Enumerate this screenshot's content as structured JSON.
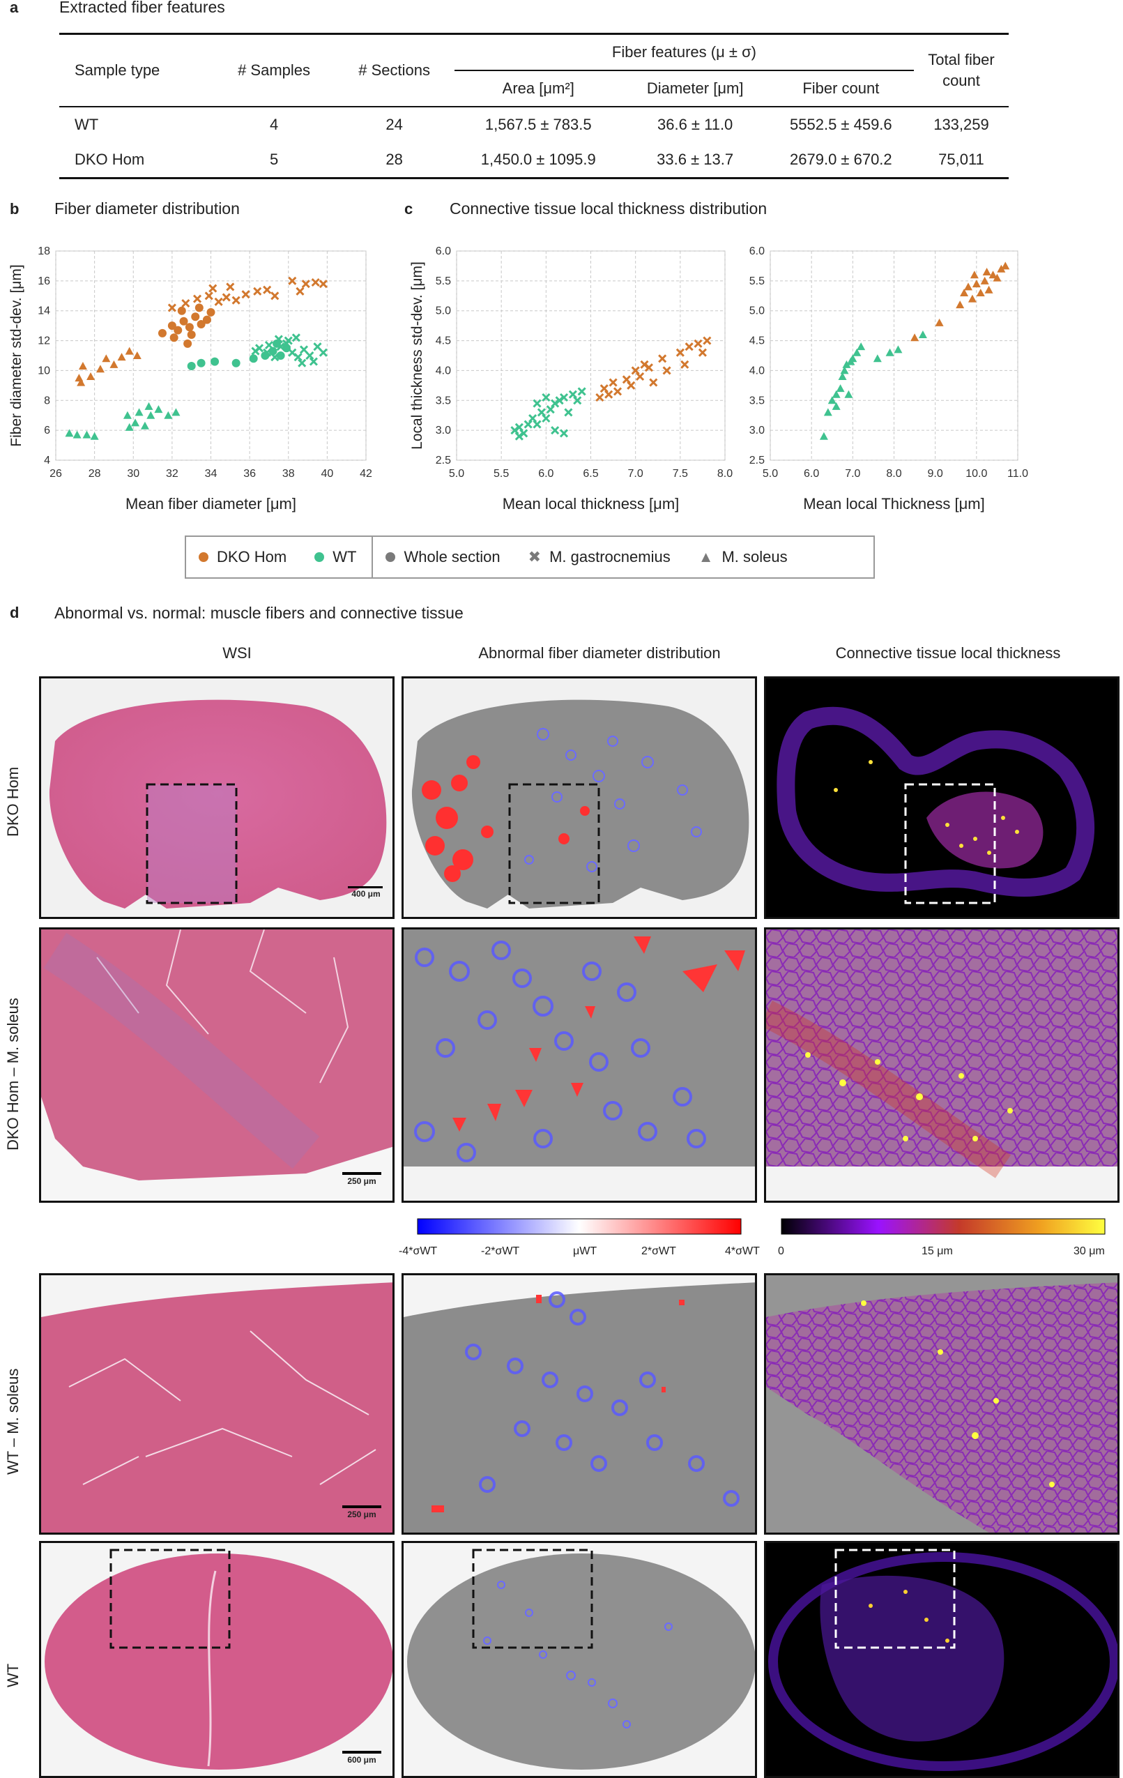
{
  "panel_a": {
    "letter": "a",
    "title": "Extracted fiber features",
    "headers": {
      "sample_type": "Sample type",
      "samples": "# Samples",
      "sections": "# Sections",
      "fiber_features": "Fiber features (μ ± σ)",
      "area": "Area [μm²]",
      "diameter": "Diameter [μm]",
      "fiber_count": "Fiber count",
      "total_fiber_count": "Total fiber count"
    },
    "rows": [
      {
        "sample": "WT",
        "samples": "4",
        "sections": "24",
        "area": "1,567.5 ± 783.5",
        "diameter": "36.6 ± 11.0",
        "fiber_count": "5552.5 ± 459.6",
        "total": "133,259"
      },
      {
        "sample": "DKO Hom",
        "samples": "5",
        "sections": "28",
        "area": "1,450.0 ± 1095.9",
        "diameter": "33.6 ± 13.7",
        "fiber_count": "2679.0 ± 670.2",
        "total": "75,011"
      }
    ]
  },
  "panel_b": {
    "letter": "b",
    "title": "Fiber diameter distribution"
  },
  "panel_c": {
    "letter": "c",
    "title": "Connective tissue local thickness distribution"
  },
  "colors": {
    "dko": "#d2782e",
    "wt": "#3fc28f",
    "grey": "#7a7a7a"
  },
  "chart_data": [
    {
      "type": "scatter",
      "xlabel": "Mean fiber diameter [μm]",
      "ylabel": "Fiber diameter std-dev. [μm]",
      "xlim": [
        26,
        42
      ],
      "ylim": [
        4,
        18
      ],
      "xticks": [
        26,
        28,
        30,
        32,
        34,
        36,
        38,
        40,
        42
      ],
      "yticks": [
        4,
        6,
        8,
        10,
        12,
        14,
        16,
        18
      ],
      "series": [
        {
          "name": "DKO Hom M. soleus",
          "marker": "triangle",
          "color": "dko",
          "points": [
            [
              27.2,
              9.5
            ],
            [
              27.4,
              10.3
            ],
            [
              27.8,
              9.6
            ],
            [
              28.3,
              10.1
            ],
            [
              28.6,
              10.8
            ],
            [
              29.0,
              10.4
            ],
            [
              29.4,
              10.9
            ],
            [
              29.8,
              11.3
            ],
            [
              30.2,
              11.0
            ],
            [
              27.3,
              9.2
            ]
          ]
        },
        {
          "name": "DKO Hom whole section",
          "marker": "circle",
          "color": "dko",
          "points": [
            [
              31.5,
              12.5
            ],
            [
              32.0,
              13.0
            ],
            [
              32.3,
              12.7
            ],
            [
              32.6,
              13.3
            ],
            [
              32.9,
              12.9
            ],
            [
              33.2,
              13.6
            ],
            [
              33.5,
              13.1
            ],
            [
              32.1,
              12.2
            ],
            [
              33.8,
              13.4
            ],
            [
              32.8,
              11.8
            ],
            [
              33.0,
              12.4
            ],
            [
              32.5,
              14.0
            ],
            [
              33.4,
              14.2
            ],
            [
              34.0,
              13.9
            ]
          ]
        },
        {
          "name": "DKO Hom M. gastrocnemius",
          "marker": "cross",
          "color": "dko",
          "points": [
            [
              32.0,
              14.2
            ],
            [
              32.7,
              14.5
            ],
            [
              33.3,
              14.8
            ],
            [
              33.9,
              15.0
            ],
            [
              34.4,
              14.6
            ],
            [
              34.8,
              14.9
            ],
            [
              35.3,
              14.7
            ],
            [
              35.8,
              15.1
            ],
            [
              36.4,
              15.3
            ],
            [
              36.9,
              15.4
            ],
            [
              37.3,
              15.0
            ],
            [
              38.6,
              15.3
            ],
            [
              38.9,
              15.8
            ],
            [
              39.4,
              15.9
            ],
            [
              39.8,
              15.8
            ],
            [
              38.2,
              16.0
            ],
            [
              34.1,
              15.5
            ],
            [
              35.0,
              15.6
            ]
          ]
        },
        {
          "name": "WT M. soleus",
          "marker": "triangle",
          "color": "wt",
          "points": [
            [
              26.7,
              5.8
            ],
            [
              27.1,
              5.7
            ],
            [
              27.6,
              5.7
            ],
            [
              28.0,
              5.6
            ],
            [
              29.8,
              6.2
            ],
            [
              30.1,
              6.5
            ],
            [
              30.6,
              6.3
            ],
            [
              29.7,
              7.0
            ],
            [
              30.3,
              7.2
            ],
            [
              30.9,
              7.0
            ],
            [
              31.3,
              7.4
            ],
            [
              31.8,
              7.0
            ],
            [
              32.2,
              7.2
            ],
            [
              30.8,
              7.6
            ]
          ]
        },
        {
          "name": "WT whole section",
          "marker": "circle",
          "color": "wt",
          "points": [
            [
              33.0,
              10.3
            ],
            [
              33.5,
              10.5
            ],
            [
              34.2,
              10.6
            ],
            [
              35.3,
              10.5
            ],
            [
              36.2,
              10.8
            ],
            [
              36.8,
              11.0
            ],
            [
              37.2,
              11.3
            ],
            [
              37.6,
              11.0
            ],
            [
              37.9,
              11.5
            ],
            [
              37.4,
              11.8
            ]
          ]
        },
        {
          "name": "WT M. gastrocnemius",
          "marker": "cross",
          "color": "wt",
          "points": [
            [
              36.5,
              11.5
            ],
            [
              36.9,
              11.2
            ],
            [
              37.3,
              10.9
            ],
            [
              37.6,
              11.6
            ],
            [
              37.9,
              11.8
            ],
            [
              38.2,
              11.2
            ],
            [
              38.5,
              10.9
            ],
            [
              38.8,
              11.4
            ],
            [
              39.1,
              11.0
            ],
            [
              39.5,
              11.6
            ],
            [
              39.8,
              11.2
            ],
            [
              38.0,
              12.0
            ],
            [
              38.4,
              12.2
            ],
            [
              37.5,
              12.1
            ],
            [
              39.3,
              10.6
            ],
            [
              38.7,
              10.5
            ],
            [
              37.0,
              11.7
            ],
            [
              36.3,
              11.3
            ]
          ]
        }
      ]
    },
    {
      "type": "scatter",
      "xlabel": "Mean local thickness [μm]",
      "ylabel": "Local thickness std-dev. [μm]",
      "xlim": [
        5.0,
        8.0
      ],
      "ylim": [
        2.5,
        6.0
      ],
      "xticks": [
        5.0,
        5.5,
        6.0,
        6.5,
        7.0,
        7.5,
        8.0
      ],
      "yticks": [
        2.5,
        3.0,
        3.5,
        4.0,
        4.5,
        5.0,
        5.5,
        6.0
      ],
      "series": [
        {
          "name": "WT M. gastrocnemius",
          "marker": "cross",
          "color": "wt",
          "points": [
            [
              5.65,
              3.0
            ],
            [
              5.7,
              3.05
            ],
            [
              5.75,
              2.95
            ],
            [
              5.8,
              3.1
            ],
            [
              5.85,
              3.2
            ],
            [
              5.9,
              3.1
            ],
            [
              5.95,
              3.3
            ],
            [
              6.0,
              3.2
            ],
            [
              6.05,
              3.35
            ],
            [
              6.1,
              3.45
            ],
            [
              6.15,
              3.5
            ],
            [
              6.2,
              3.55
            ],
            [
              6.25,
              3.3
            ],
            [
              6.3,
              3.6
            ],
            [
              6.35,
              3.5
            ],
            [
              5.7,
              2.9
            ],
            [
              5.9,
              3.45
            ],
            [
              6.1,
              3.0
            ],
            [
              6.2,
              2.95
            ],
            [
              6.4,
              3.65
            ],
            [
              6.0,
              3.55
            ]
          ]
        },
        {
          "name": "DKO Hom M. gastrocnemius",
          "marker": "cross",
          "color": "dko",
          "points": [
            [
              6.6,
              3.55
            ],
            [
              6.65,
              3.7
            ],
            [
              6.75,
              3.8
            ],
            [
              6.8,
              3.65
            ],
            [
              6.9,
              3.85
            ],
            [
              6.95,
              3.75
            ],
            [
              7.0,
              4.0
            ],
            [
              7.05,
              3.9
            ],
            [
              7.1,
              4.1
            ],
            [
              7.2,
              3.8
            ],
            [
              7.3,
              4.2
            ],
            [
              7.35,
              4.0
            ],
            [
              7.5,
              4.3
            ],
            [
              7.55,
              4.1
            ],
            [
              7.6,
              4.4
            ],
            [
              7.7,
              4.45
            ],
            [
              7.8,
              4.5
            ],
            [
              7.75,
              4.3
            ],
            [
              6.7,
              3.6
            ],
            [
              7.15,
              4.05
            ]
          ]
        }
      ]
    },
    {
      "type": "scatter",
      "xlabel": "Mean local Thickness [μm]",
      "ylabel": "",
      "xlim": [
        5,
        11
      ],
      "ylim": [
        2.5,
        6.0
      ],
      "xticks": [
        5,
        6,
        7,
        8,
        9,
        10,
        11
      ],
      "yticks": [
        2.5,
        3.0,
        3.5,
        4.0,
        4.5,
        5.0,
        5.5,
        6.0
      ],
      "series": [
        {
          "name": "WT M. soleus",
          "marker": "triangle",
          "color": "wt",
          "points": [
            [
              6.3,
              2.9
            ],
            [
              6.4,
              3.3
            ],
            [
              6.5,
              3.5
            ],
            [
              6.6,
              3.6
            ],
            [
              6.7,
              3.7
            ],
            [
              6.75,
              3.9
            ],
            [
              6.8,
              4.0
            ],
            [
              6.85,
              4.1
            ],
            [
              6.9,
              3.6
            ],
            [
              7.0,
              4.2
            ],
            [
              7.1,
              4.3
            ],
            [
              7.2,
              4.4
            ],
            [
              7.6,
              4.2
            ],
            [
              7.9,
              4.3
            ],
            [
              8.1,
              4.35
            ],
            [
              6.6,
              3.4
            ],
            [
              6.95,
              4.15
            ],
            [
              8.7,
              4.6
            ]
          ]
        },
        {
          "name": "DKO Hom M. soleus",
          "marker": "triangle",
          "color": "dko",
          "points": [
            [
              8.5,
              4.55
            ],
            [
              9.1,
              4.8
            ],
            [
              9.6,
              5.1
            ],
            [
              9.7,
              5.3
            ],
            [
              9.8,
              5.4
            ],
            [
              9.9,
              5.2
            ],
            [
              10.0,
              5.45
            ],
            [
              10.1,
              5.3
            ],
            [
              10.2,
              5.5
            ],
            [
              10.3,
              5.35
            ],
            [
              10.4,
              5.6
            ],
            [
              10.5,
              5.55
            ],
            [
              10.6,
              5.7
            ],
            [
              10.7,
              5.75
            ],
            [
              9.95,
              5.6
            ],
            [
              10.25,
              5.65
            ]
          ]
        }
      ]
    }
  ],
  "legend": {
    "dko": "DKO Hom",
    "wt": "WT",
    "whole": "Whole section",
    "gastro": "M. gastrocnemius",
    "soleus": "M. soleus"
  },
  "panel_d": {
    "letter": "d",
    "title": "Abnormal vs. normal: muscle fibers and connective tissue",
    "col_wsi": "WSI",
    "col_abnormal": "Abnormal fiber diameter distribution",
    "col_thickness": "Connective tissue local thickness",
    "row1": "DKO Hom",
    "row2": "DKO Hom – M. soleus",
    "row3": "WT – M. soleus",
    "row4": "WT",
    "scale_400": "400 μm",
    "scale_250a": "250 μm",
    "scale_250b": "250 μm",
    "scale_600": "600 μm",
    "cbar1": {
      "l1": "-4*σWT",
      "l2": "-2*σWT",
      "l3": "μWT",
      "l4": "2*σWT",
      "l5": "4*σWT"
    },
    "cbar2": {
      "l1": "0",
      "l2": "15 μm",
      "l3": "30 μm"
    }
  }
}
